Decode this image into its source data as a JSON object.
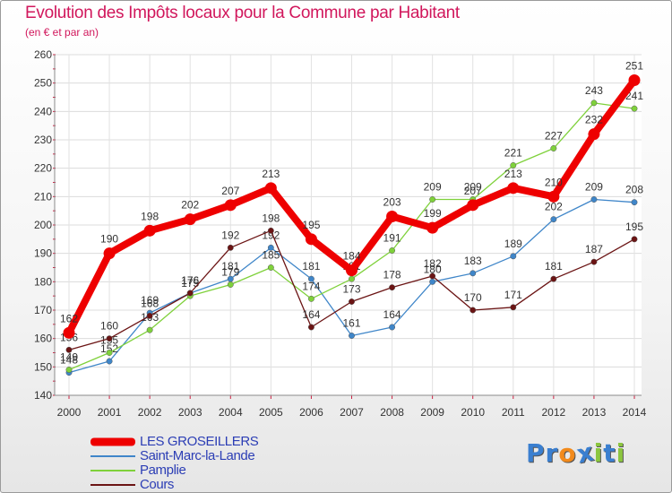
{
  "title": "Evolution des Impôts locaux pour la Commune par Habitant",
  "subtitle": "(en € et par an)",
  "logo": {
    "text": "Proxiti",
    "letters": [
      "P",
      "r",
      "o",
      "x",
      "i",
      "t",
      "i"
    ],
    "colors": [
      "#3a7fd0",
      "#3a7fd0",
      "#f28a1b",
      "#3a7fd0",
      "#8cc63f",
      "#3a7fd0",
      "#8cc63f"
    ]
  },
  "chart_data": {
    "type": "line",
    "title": "Evolution des Impôts locaux pour la Commune par Habitant",
    "subtitle": "(en € et par an)",
    "xlabel": "",
    "ylabel": "",
    "x": [
      2000,
      2001,
      2002,
      2003,
      2004,
      2005,
      2006,
      2007,
      2008,
      2009,
      2010,
      2011,
      2012,
      2013,
      2014
    ],
    "ylim": [
      140,
      260
    ],
    "yticks": [
      140,
      150,
      160,
      170,
      180,
      190,
      200,
      210,
      220,
      230,
      240,
      250,
      260
    ],
    "grid": true,
    "legend_position": "bottom-left",
    "series": [
      {
        "name": "LES GROSEILLERS",
        "color": "#ee0000",
        "emphasis": true,
        "values": [
          162,
          190,
          198,
          202,
          207,
          213,
          195,
          184,
          203,
          199,
          207,
          213,
          210,
          232,
          251
        ]
      },
      {
        "name": "Saint-Marc-la-Lande",
        "color": "#3f86c9",
        "values": [
          148,
          152,
          169,
          176,
          181,
          192,
          181,
          161,
          164,
          180,
          183,
          189,
          202,
          209,
          208
        ]
      },
      {
        "name": "Pamplie",
        "color": "#7fd13b",
        "values": [
          149,
          155,
          163,
          175,
          179,
          185,
          174,
          181,
          191,
          209,
          209,
          221,
          227,
          243,
          241
        ]
      },
      {
        "name": "Cours",
        "color": "#6b1414",
        "values": [
          156,
          160,
          168,
          176,
          192,
          198,
          164,
          173,
          178,
          182,
          170,
          171,
          181,
          187,
          195
        ]
      }
    ]
  }
}
